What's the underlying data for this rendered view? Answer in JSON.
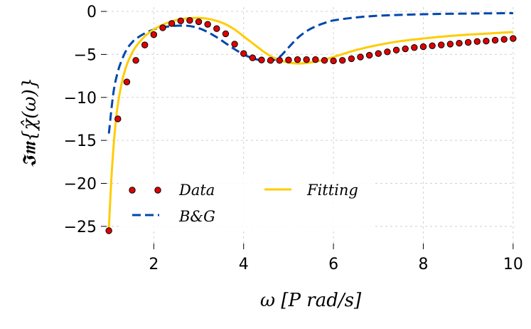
{
  "chart_data": {
    "type": "line",
    "title": "",
    "xlabel": "ω  [P rad/s]",
    "ylabel": "𝕴𝖒{χ̂(ω)}",
    "xlim": [
      0.95,
      10.05
    ],
    "ylim": [
      -27,
      0.5
    ],
    "xticks": [
      2,
      4,
      6,
      8,
      10
    ],
    "yticks": [
      0,
      -5,
      -10,
      -15,
      -20,
      -25
    ],
    "xtick_labels": [
      "2",
      "4",
      "6",
      "8",
      "10"
    ],
    "ytick_labels": [
      "0",
      "−5",
      "−10",
      "−15",
      "−20",
      "−25"
    ],
    "grid": true,
    "legend_position": "lower-left",
    "series": [
      {
        "name": "Data",
        "style": "markers",
        "color": "#e00000",
        "edge_color": "#000000",
        "x": [
          1.0,
          1.2,
          1.4,
          1.6,
          1.8,
          2.0,
          2.2,
          2.4,
          2.6,
          2.8,
          3.0,
          3.2,
          3.4,
          3.6,
          3.8,
          4.0,
          4.2,
          4.4,
          4.6,
          4.8,
          5.0,
          5.2,
          5.4,
          5.6,
          5.8,
          6.0,
          6.2,
          6.4,
          6.6,
          6.8,
          7.0,
          7.2,
          7.4,
          7.6,
          7.8,
          8.0,
          8.2,
          8.4,
          8.6,
          8.8,
          9.0,
          9.2,
          9.4,
          9.6,
          9.8,
          10.0
        ],
        "y": [
          -25.5,
          -12.5,
          -8.2,
          -5.7,
          -3.9,
          -2.7,
          -1.9,
          -1.4,
          -1.1,
          -1.05,
          -1.2,
          -1.5,
          -2.0,
          -2.6,
          -3.8,
          -4.9,
          -5.4,
          -5.65,
          -5.7,
          -5.7,
          -5.65,
          -5.6,
          -5.6,
          -5.6,
          -5.7,
          -5.75,
          -5.7,
          -5.5,
          -5.3,
          -5.1,
          -4.9,
          -4.7,
          -4.5,
          -4.35,
          -4.2,
          -4.1,
          -4.0,
          -3.9,
          -3.8,
          -3.7,
          -3.6,
          -3.5,
          -3.45,
          -3.35,
          -3.25,
          -3.15
        ]
      },
      {
        "name": "B&G",
        "style": "dashed",
        "color": "#0047ab",
        "x": [
          1.0,
          1.1,
          1.2,
          1.3,
          1.4,
          1.5,
          1.6,
          1.8,
          2.0,
          2.2,
          2.4,
          2.6,
          2.8,
          3.0,
          3.2,
          3.4,
          3.6,
          3.8,
          4.0,
          4.2,
          4.4,
          4.6,
          4.8,
          5.0,
          5.2,
          5.4,
          5.6,
          5.8,
          6.0,
          6.5,
          7.0,
          7.5,
          8.0,
          8.5,
          9.0,
          9.5,
          10.0
        ],
        "y": [
          -14.2,
          -9.5,
          -7.0,
          -5.5,
          -4.4,
          -3.7,
          -3.2,
          -2.55,
          -2.1,
          -1.85,
          -1.7,
          -1.65,
          -1.7,
          -1.95,
          -2.4,
          -3.0,
          -3.7,
          -4.4,
          -5.0,
          -5.45,
          -5.7,
          -5.75,
          -5.3,
          -4.2,
          -3.1,
          -2.3,
          -1.75,
          -1.35,
          -1.05,
          -0.7,
          -0.5,
          -0.4,
          -0.33,
          -0.28,
          -0.25,
          -0.22,
          -0.2
        ]
      },
      {
        "name": "Fitting",
        "style": "solid",
        "color": "#ffcc00",
        "x": [
          1.0,
          1.05,
          1.1,
          1.15,
          1.2,
          1.3,
          1.4,
          1.5,
          1.6,
          1.8,
          2.0,
          2.2,
          2.4,
          2.6,
          2.8,
          3.0,
          3.2,
          3.4,
          3.6,
          3.8,
          4.0,
          4.2,
          4.4,
          4.6,
          4.8,
          5.0,
          5.2,
          5.4,
          5.6,
          5.8,
          6.0,
          6.5,
          7.0,
          7.5,
          8.0,
          8.5,
          9.0,
          9.5,
          10.0
        ],
        "y": [
          -25.2,
          -20.0,
          -16.0,
          -13.0,
          -10.8,
          -8.0,
          -6.2,
          -5.0,
          -4.1,
          -2.9,
          -2.1,
          -1.55,
          -1.15,
          -0.9,
          -0.78,
          -0.76,
          -0.85,
          -1.1,
          -1.5,
          -2.1,
          -2.9,
          -3.7,
          -4.5,
          -5.2,
          -5.65,
          -5.95,
          -6.05,
          -6.0,
          -5.85,
          -5.6,
          -5.3,
          -4.5,
          -3.9,
          -3.45,
          -3.15,
          -2.9,
          -2.7,
          -2.55,
          -2.4
        ]
      }
    ]
  }
}
